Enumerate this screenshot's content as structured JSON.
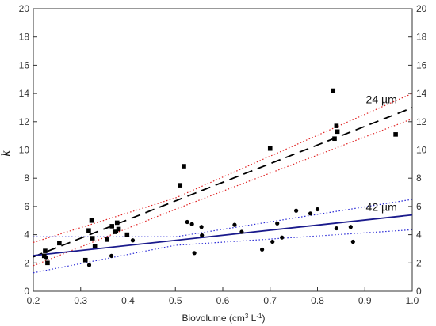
{
  "chart_data": {
    "type": "scatter",
    "xlabel_main": "Biovolume (cm",
    "xlabel_sup1": "3",
    "xlabel_mid": " L",
    "xlabel_sup2": "-1",
    "xlabel_end": ")",
    "ylabel": "k",
    "xlim": [
      0.2,
      1.0
    ],
    "ylim": [
      0,
      20
    ],
    "x_ticks": [
      "0.2",
      "0.3",
      "0.4",
      "0.5",
      "0.6",
      "0.7",
      "0.8",
      "0.9",
      "1.0"
    ],
    "y_ticks": [
      "0",
      "2",
      "4",
      "6",
      "8",
      "10",
      "12",
      "14",
      "16",
      "18",
      "20"
    ],
    "y_ticks_right": [
      "0",
      "2",
      "4",
      "6",
      "8",
      "10",
      "12",
      "14",
      "16",
      "18",
      "20"
    ],
    "series": [
      {
        "name": "24 µm",
        "marker": "square",
        "color": "#000000",
        "points": [
          [
            0.223,
            2.5
          ],
          [
            0.225,
            2.85
          ],
          [
            0.23,
            2.0
          ],
          [
            0.255,
            3.4
          ],
          [
            0.31,
            2.2
          ],
          [
            0.317,
            4.3
          ],
          [
            0.323,
            5.0
          ],
          [
            0.325,
            3.75
          ],
          [
            0.33,
            3.2
          ],
          [
            0.356,
            3.65
          ],
          [
            0.366,
            4.6
          ],
          [
            0.372,
            4.2
          ],
          [
            0.377,
            4.85
          ],
          [
            0.38,
            4.4
          ],
          [
            0.398,
            4.0
          ],
          [
            0.51,
            7.5
          ],
          [
            0.518,
            8.85
          ],
          [
            0.7,
            10.1
          ],
          [
            0.833,
            14.2
          ],
          [
            0.84,
            11.7
          ],
          [
            0.836,
            10.8
          ],
          [
            0.842,
            11.3
          ],
          [
            0.965,
            11.1
          ]
        ],
        "fit": {
          "intercept": -0.21,
          "slope": 13.2,
          "color": "#000000",
          "style": "dashed"
        },
        "ci_lower": [
          [
            0.2,
            1.8
          ],
          [
            0.5,
            5.8
          ],
          [
            1.0,
            12.2
          ]
        ],
        "ci_upper": [
          [
            0.2,
            3.45
          ],
          [
            0.5,
            6.6
          ],
          [
            1.0,
            14.0
          ]
        ],
        "ci_color": "#e02020"
      },
      {
        "name": "42 µm",
        "marker": "circle",
        "color": "#000000",
        "points": [
          [
            0.227,
            2.4
          ],
          [
            0.318,
            1.85
          ],
          [
            0.365,
            2.5
          ],
          [
            0.375,
            4.2
          ],
          [
            0.41,
            3.6
          ],
          [
            0.525,
            4.9
          ],
          [
            0.535,
            4.75
          ],
          [
            0.54,
            2.7
          ],
          [
            0.555,
            4.55
          ],
          [
            0.556,
            3.95
          ],
          [
            0.625,
            4.7
          ],
          [
            0.64,
            4.2
          ],
          [
            0.683,
            2.95
          ],
          [
            0.705,
            3.5
          ],
          [
            0.715,
            4.8
          ],
          [
            0.725,
            3.8
          ],
          [
            0.755,
            5.7
          ],
          [
            0.785,
            5.5
          ],
          [
            0.8,
            5.8
          ],
          [
            0.84,
            4.45
          ],
          [
            0.87,
            4.55
          ],
          [
            0.875,
            3.5
          ]
        ],
        "fit": {
          "intercept": 1.8,
          "slope": 3.6,
          "color": "#1a1a8c",
          "style": "solid"
        },
        "ci_lower": [
          [
            0.2,
            1.3
          ],
          [
            0.5,
            3.25
          ],
          [
            1.0,
            4.35
          ]
        ],
        "ci_upper": [
          [
            0.2,
            3.85
          ],
          [
            0.5,
            3.85
          ],
          [
            1.0,
            6.5
          ]
        ],
        "ci_color": "#2b2bd6"
      }
    ],
    "annotations": [
      {
        "text": "24 µm",
        "x": 0.935,
        "y": 13.3
      },
      {
        "text": "42 µm",
        "x": 0.935,
        "y": 5.7
      }
    ],
    "grid": false
  }
}
